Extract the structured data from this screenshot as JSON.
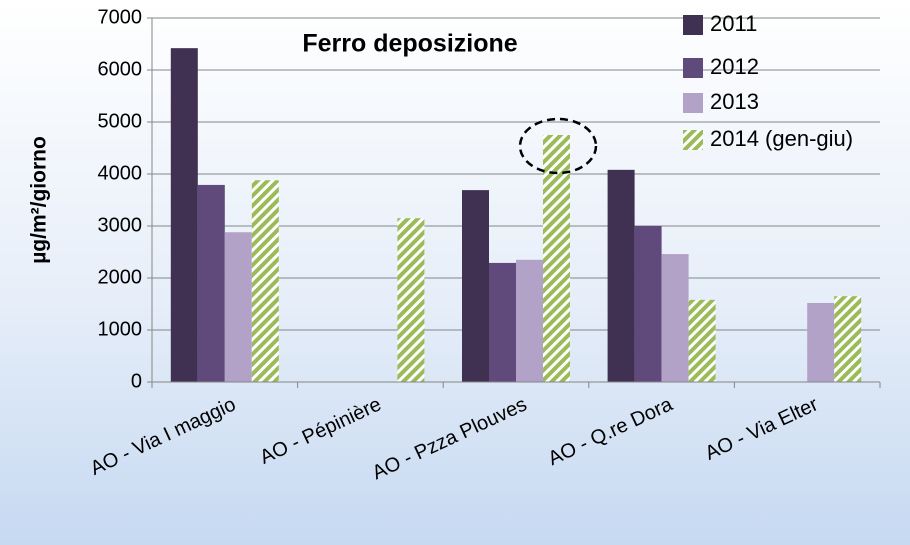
{
  "chart_data": {
    "type": "bar",
    "title": "Ferro deposizione",
    "ylabel": "µg/m²/giorno",
    "categories": [
      "AO - Via I maggio",
      "AO - Pépinière",
      "AO - Pzza Plouves",
      "AO - Q.re Dora",
      "AO - Via Elter"
    ],
    "series": [
      {
        "name": "2011",
        "color": "#403152",
        "values": [
          6420,
          null,
          3690,
          4080,
          null
        ]
      },
      {
        "name": "2012",
        "color": "#604a7b",
        "values": [
          3790,
          null,
          2290,
          3000,
          null
        ]
      },
      {
        "name": "2013",
        "color": "#b3a2c7",
        "values": [
          2880,
          null,
          2350,
          2460,
          1520
        ]
      },
      {
        "name": "2014 (gen-giu)",
        "color": "#9bbb59",
        "hatch": true,
        "values": [
          3880,
          3150,
          4750,
          1580,
          1650
        ]
      }
    ],
    "ylim": [
      0,
      7000
    ],
    "yticks": [
      0,
      1000,
      2000,
      3000,
      4000,
      5000,
      6000,
      7000
    ],
    "grid": true,
    "legend": "upper right"
  }
}
